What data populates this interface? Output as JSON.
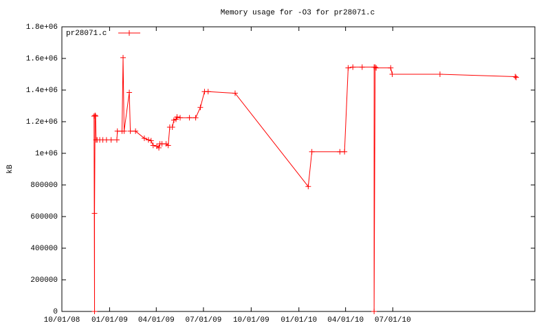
{
  "chart_data": {
    "type": "line",
    "title": "Memory usage for -O3 for pr28071.c",
    "y_label": "kB",
    "x": [
      "2008-12-02",
      "2008-12-03",
      "2008-12-03",
      "2008-12-04",
      "2008-12-05",
      "2008-12-06",
      "2008-12-08",
      "2008-12-13",
      "2008-12-19",
      "2008-12-26",
      "2009-01-04",
      "2009-01-15",
      "2009-01-16",
      "2009-01-25",
      "2009-01-27",
      "2009-01-29",
      "2009-02-08",
      "2009-02-10",
      "2009-02-20",
      "2009-03-09",
      "2009-03-17",
      "2009-03-22",
      "2009-03-26",
      "2009-04-02",
      "2009-04-06",
      "2009-04-08",
      "2009-04-12",
      "2009-04-20",
      "2009-04-24",
      "2009-04-27",
      "2009-05-02",
      "2009-05-05",
      "2009-05-09",
      "2009-05-11",
      "2009-05-17",
      "2009-06-04",
      "2009-06-16",
      "2009-06-25",
      "2009-07-03",
      "2009-07-10",
      "2009-08-31",
      "2010-01-19",
      "2010-01-26",
      "2010-03-21",
      "2010-03-30",
      "2010-04-06",
      "2010-04-15",
      "2010-05-03",
      "2010-05-26",
      "2010-05-26",
      "2010-05-28",
      "2010-05-30",
      "2010-06-27",
      "2010-06-30",
      "2010-09-30",
      "2011-02-22",
      "2011-02-24"
    ],
    "series": [
      {
        "name": "pr28071.c",
        "color": "#ff0000",
        "values": [
          1235000,
          0,
          620000,
          1240000,
          1235000,
          1085000,
          1085000,
          1085000,
          1085000,
          1085000,
          1085000,
          1085000,
          1140000,
          1140000,
          1605000,
          1140000,
          1385000,
          1140000,
          1140000,
          1095000,
          1085000,
          1080000,
          1050000,
          1045000,
          1035000,
          1060000,
          1060000,
          1060000,
          1050000,
          1165000,
          1165000,
          1210000,
          1215000,
          1230000,
          1225000,
          1225000,
          1225000,
          1290000,
          1390000,
          1390000,
          1380000,
          790000,
          1010000,
          1010000,
          1010000,
          1540000,
          1545000,
          1545000,
          1545000,
          0,
          1545000,
          1540000,
          1540000,
          1500000,
          1500000,
          1485000,
          1480000
        ]
      }
    ],
    "xlim": [
      "2008-10-01",
      "2011-04-01"
    ],
    "xticks": [
      {
        "value": "2008-10-01",
        "label": "10/01/08"
      },
      {
        "value": "2009-01-01",
        "label": "01/01/09"
      },
      {
        "value": "2009-04-01",
        "label": "04/01/09"
      },
      {
        "value": "2009-07-01",
        "label": "07/01/09"
      },
      {
        "value": "2009-10-01",
        "label": "10/01/09"
      },
      {
        "value": "2010-01-01",
        "label": "01/01/10"
      },
      {
        "value": "2010-04-01",
        "label": "04/01/10"
      },
      {
        "value": "2010-07-01",
        "label": "07/01/10"
      }
    ],
    "ylim": [
      0,
      1800000
    ],
    "yticks": [
      0,
      200000,
      400000,
      600000,
      800000,
      {
        "value": 1000000,
        "label": "1e+06"
      },
      {
        "value": 1200000,
        "label": "1.2e+06"
      },
      {
        "value": 1400000,
        "label": "1.4e+06"
      },
      {
        "value": 1600000,
        "label": "1.6e+06"
      },
      {
        "value": 1800000,
        "label": "1.8e+06"
      }
    ],
    "legend": "top-left"
  }
}
